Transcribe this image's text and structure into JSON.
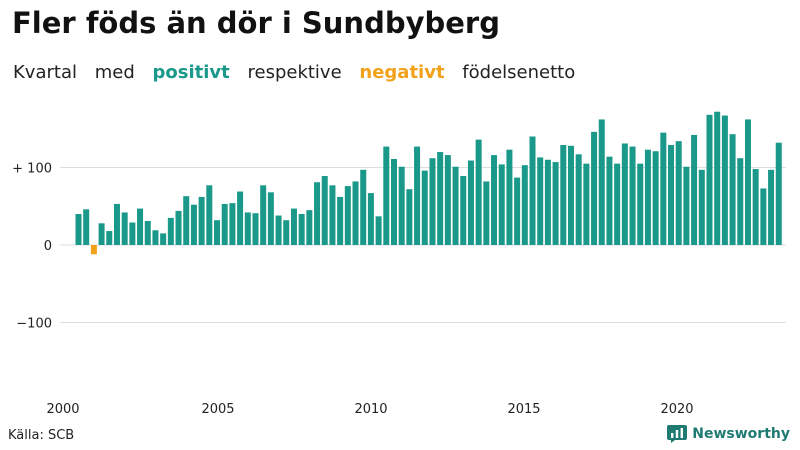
{
  "title": "Fler föds än dör i Sundbyberg",
  "subtitle": {
    "part1": "Kvartal",
    "part2": "med",
    "positive": "positivt",
    "part3": "respektive",
    "negative": "negativt",
    "part4": "födelsenetto"
  },
  "colors": {
    "positive": "#1a998a",
    "negative": "#f2a11b",
    "brand": "#1f7a72"
  },
  "source": "Källa: SCB",
  "brand": {
    "name": "Newsworthy",
    "icon": "bar-chart-logo-icon"
  },
  "chart_data": {
    "type": "bar",
    "title": "Fler föds än dör i Sundbyberg",
    "xlabel": "",
    "ylabel": "",
    "x_start": "2000 Q1",
    "x_ticks": [
      "2000",
      "2005",
      "2010",
      "2015",
      "2020"
    ],
    "y_ticks": [
      {
        "value": 100,
        "label": "+ 100"
      },
      {
        "value": 0,
        "label": "0"
      },
      {
        "value": -100,
        "label": "−100"
      }
    ],
    "ylim": [
      -190,
      180
    ],
    "grid": true,
    "values": [
      40,
      46,
      -12,
      28,
      18,
      53,
      42,
      29,
      47,
      31,
      19,
      15,
      35,
      44,
      63,
      52,
      62,
      77,
      32,
      53,
      54,
      69,
      42,
      41,
      77,
      68,
      38,
      32,
      47,
      40,
      45,
      81,
      89,
      77,
      62,
      76,
      82,
      97,
      67,
      37,
      127,
      111,
      101,
      72,
      127,
      96,
      112,
      120,
      116,
      101,
      89,
      109,
      136,
      82,
      116,
      104,
      123,
      87,
      103,
      140,
      113,
      110,
      107,
      129,
      128,
      117,
      105,
      146,
      162,
      114,
      105,
      131,
      127,
      105,
      123,
      121,
      145,
      129,
      134,
      101,
      142,
      97,
      168,
      172,
      167,
      143,
      112,
      162,
      98,
      73,
      97,
      132
    ]
  }
}
